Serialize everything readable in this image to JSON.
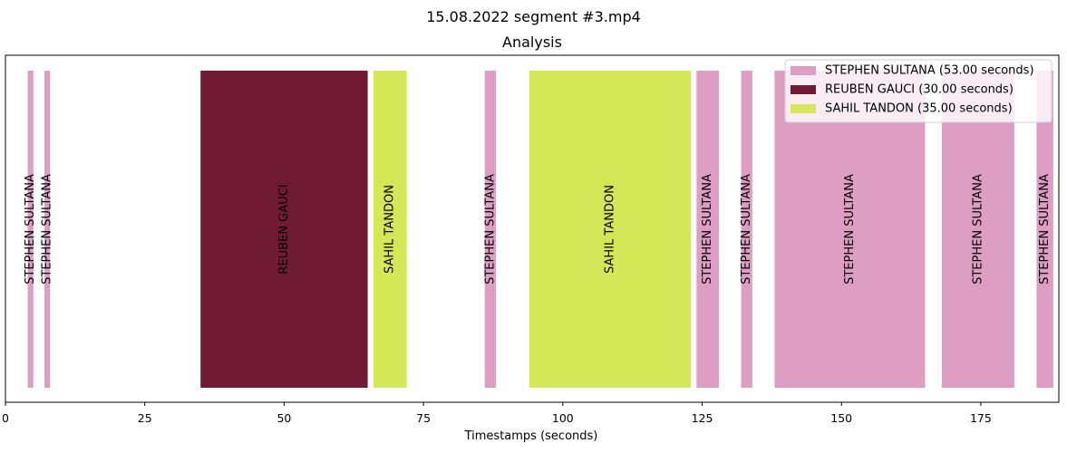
{
  "chart_data": {
    "type": "bar",
    "orientation": "timeline",
    "title": "15.08.2022 segment #3.mp4",
    "subtitle": "Analysis",
    "xlabel": "Timestamps (seconds)",
    "ylabel": "",
    "xlim": [
      0,
      189
    ],
    "xticks": [
      0,
      25,
      50,
      75,
      100,
      125,
      150,
      175
    ],
    "grid": false,
    "legend_position": "top-right",
    "legend": [
      {
        "speaker": "STEPHEN SULTANA",
        "label": "STEPHEN SULTANA (53.00 seconds)",
        "color": "#de9ec4"
      },
      {
        "speaker": "REUBEN GAUCI",
        "label": "REUBEN GAUCI (30.00 seconds)",
        "color": "#711a36"
      },
      {
        "speaker": "SAHIL TANDON",
        "label": "SAHIL TANDON (35.00 seconds)",
        "color": "#d4e857"
      }
    ],
    "segments": [
      {
        "speaker": "STEPHEN SULTANA",
        "start": 4,
        "end": 5
      },
      {
        "speaker": "STEPHEN SULTANA",
        "start": 7,
        "end": 8
      },
      {
        "speaker": "REUBEN GAUCI",
        "start": 35,
        "end": 65
      },
      {
        "speaker": "SAHIL TANDON",
        "start": 66,
        "end": 72
      },
      {
        "speaker": "STEPHEN SULTANA",
        "start": 86,
        "end": 88
      },
      {
        "speaker": "SAHIL TANDON",
        "start": 94,
        "end": 123
      },
      {
        "speaker": "STEPHEN SULTANA",
        "start": 124,
        "end": 128
      },
      {
        "speaker": "STEPHEN SULTANA",
        "start": 132,
        "end": 134
      },
      {
        "speaker": "STEPHEN SULTANA",
        "start": 138,
        "end": 165
      },
      {
        "speaker": "STEPHEN SULTANA",
        "start": 168,
        "end": 181
      },
      {
        "speaker": "STEPHEN SULTANA",
        "start": 185,
        "end": 188
      }
    ]
  }
}
